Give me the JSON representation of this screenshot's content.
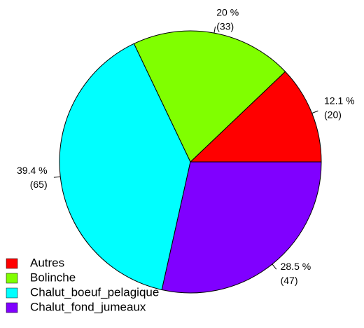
{
  "chart_data": {
    "type": "pie",
    "categories": [
      "Autres",
      "Bolinche",
      "Chalut_boeuf_pelagique",
      "Chalut_fond_jumeaux"
    ],
    "values": [
      12.1,
      20,
      39.4,
      28.5
    ],
    "value_labels": [
      "12.1 %",
      "20 %",
      "39.4 %",
      "28.5 %"
    ],
    "counts": [
      20,
      33,
      65,
      47
    ],
    "count_labels": [
      "(20)",
      "(33)",
      "(65)",
      "(47)"
    ],
    "colors": [
      "#ff0000",
      "#80ff00",
      "#00ffff",
      "#8000ff"
    ],
    "legend": "bottom-left"
  }
}
